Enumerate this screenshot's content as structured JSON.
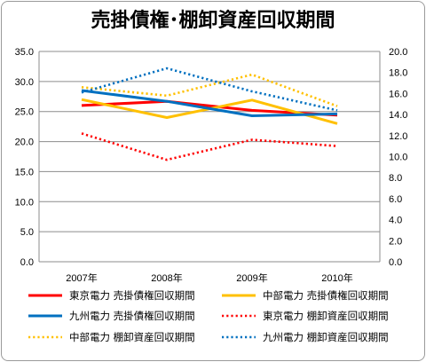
{
  "chart_data": {
    "type": "line",
    "title": "売掛債権･棚卸資産回収期間",
    "categories": [
      "2007年",
      "2008年",
      "2009年",
      "2010年"
    ],
    "y_left": {
      "ylim": [
        0,
        35
      ],
      "ticks": [
        "0.0",
        "5.0",
        "10.0",
        "15.0",
        "20.0",
        "25.0",
        "30.0",
        "35.0"
      ]
    },
    "y_right": {
      "ylim": [
        0,
        20
      ],
      "ticks": [
        "0.0",
        "2.0",
        "4.0",
        "6.0",
        "8.0",
        "10.0",
        "12.0",
        "14.0",
        "16.0",
        "18.0",
        "20.0"
      ]
    },
    "grid": true,
    "legend_position": "bottom",
    "series": [
      {
        "name": "東京電力 売掛債権回収期間",
        "axis": "left",
        "style": "solid",
        "color": "#ff0000",
        "values": [
          26.0,
          26.7,
          25.2,
          24.4
        ]
      },
      {
        "name": "中部電力 売掛債権回収期間",
        "axis": "left",
        "style": "solid",
        "color": "#ffc000",
        "values": [
          27.0,
          24.0,
          26.9,
          23.0
        ]
      },
      {
        "name": "九州電力 売掛債権回収期間",
        "axis": "left",
        "style": "solid",
        "color": "#0070c0",
        "values": [
          28.5,
          26.7,
          24.3,
          24.6
        ]
      },
      {
        "name": "東京電力 棚卸資産回収期間",
        "axis": "right",
        "style": "dotted",
        "color": "#ff0000",
        "values": [
          12.2,
          9.7,
          11.6,
          11.0
        ]
      },
      {
        "name": "中部電力 棚卸資産回収期間",
        "axis": "right",
        "style": "dotted",
        "color": "#ffc000",
        "values": [
          16.6,
          15.8,
          17.8,
          14.8
        ]
      },
      {
        "name": "九州電力 棚卸資産回収期間",
        "axis": "right",
        "style": "dotted",
        "color": "#0070c0",
        "values": [
          16.1,
          18.4,
          16.2,
          14.4
        ]
      }
    ]
  }
}
